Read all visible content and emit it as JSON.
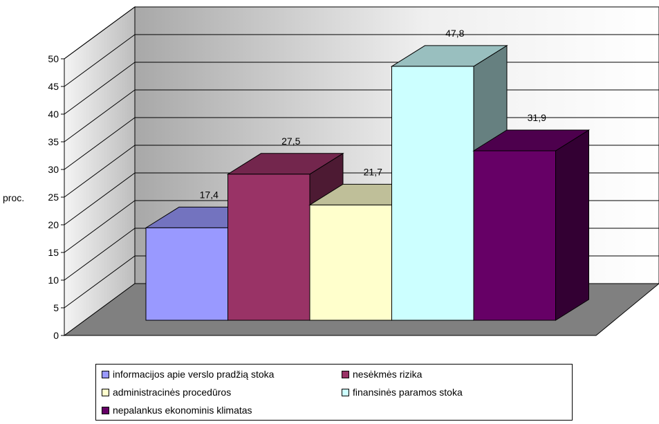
{
  "chart_data": {
    "type": "bar",
    "three_d": true,
    "title": "",
    "ylabel": "proc.",
    "xlabel": "",
    "ylim": [
      0,
      50
    ],
    "ytick_step": 5,
    "yticks": [
      "0",
      "5",
      "10",
      "15",
      "20",
      "25",
      "30",
      "35",
      "40",
      "45",
      "50"
    ],
    "grid": true,
    "legend_position": "bottom",
    "series": [
      {
        "name": "informacijos apie verslo pradžią stoka",
        "value": 17.4,
        "label": "17,4",
        "color": "#9999ff"
      },
      {
        "name": "nesėkmės rizika",
        "value": 27.5,
        "label": "27,5",
        "color": "#993366"
      },
      {
        "name": "administracinės procedūros",
        "value": 21.7,
        "label": "21,7",
        "color": "#ffffcc"
      },
      {
        "name": "finansinės paramos stoka",
        "value": 47.8,
        "label": "47,8",
        "color": "#ccffff"
      },
      {
        "name": "nepalankus ekonominis klimatas",
        "value": 31.9,
        "label": "31,9",
        "color": "#660066"
      }
    ]
  }
}
